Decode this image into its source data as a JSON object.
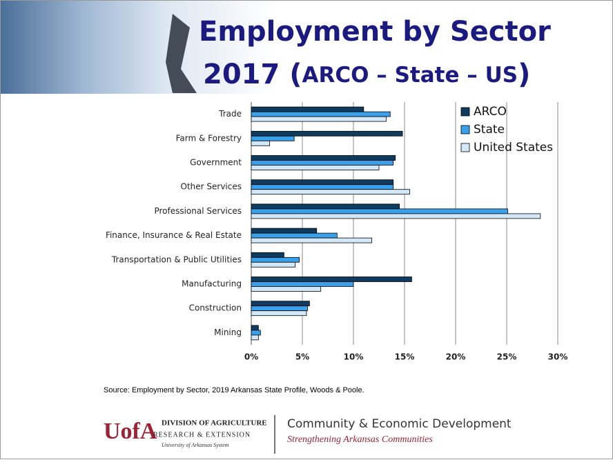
{
  "title": [
    "Employment by Sector",
    "2017 (",
    "ARCO – State – US",
    ")"
  ],
  "chart_data": {
    "type": "bar",
    "orientation": "horizontal",
    "categories": [
      "Trade",
      "Farm & Forestry",
      "Government",
      "Other Services",
      "Professional Services",
      "Finance, Insurance & Real Estate",
      "Transportation & Public Utilities",
      "Manufacturing",
      "Construction",
      "Mining"
    ],
    "series": [
      {
        "name": "ARCO",
        "color": "#0f3b5f",
        "values": [
          11.0,
          14.8,
          14.1,
          13.9,
          14.5,
          6.4,
          3.2,
          15.7,
          5.7,
          0.7
        ]
      },
      {
        "name": "State",
        "color": "#3aa0ea",
        "values": [
          13.6,
          4.2,
          13.9,
          13.9,
          25.1,
          8.4,
          4.7,
          10.0,
          5.5,
          0.9
        ]
      },
      {
        "name": "United States",
        "color": "#d2e8f8",
        "values": [
          13.2,
          1.8,
          12.5,
          15.5,
          28.3,
          11.8,
          4.3,
          6.8,
          5.4,
          0.7
        ]
      }
    ],
    "xlim": [
      0,
      30
    ],
    "xticks": [
      {
        "value": 0,
        "label": "0%"
      },
      {
        "value": 5,
        "label": "5%"
      },
      {
        "value": 10,
        "label": "10%"
      },
      {
        "value": 15,
        "label": "15%"
      },
      {
        "value": 20,
        "label": "20%"
      },
      {
        "value": 25,
        "label": "25%"
      },
      {
        "value": 30,
        "label": "30%"
      }
    ],
    "grid": true,
    "legend": "upper right"
  },
  "source": "Source: Employment by Sector, 2019 Arkansas State Profile, Woods & Poole.",
  "footer": {
    "logo_mark": "UofA",
    "division": "DIVISION OF AGRICULTURE",
    "research": "RESEARCH & EXTENSION",
    "system": "University of Arkansas System",
    "program": "Community & Economic Development",
    "tagline": "Strengthening Arkansas Communities"
  }
}
